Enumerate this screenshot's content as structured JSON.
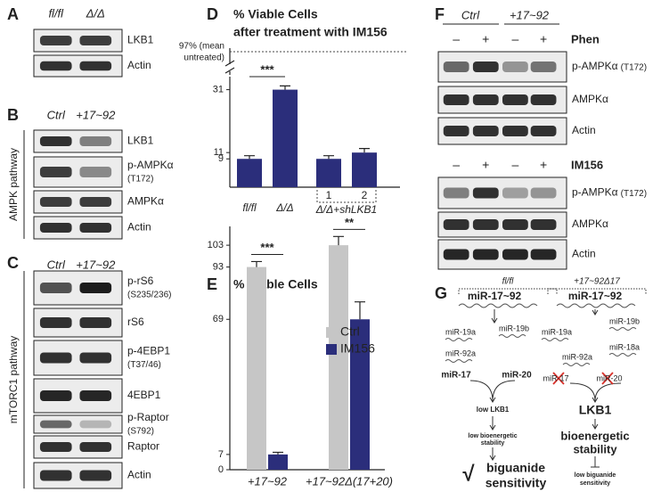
{
  "panels": {
    "A": {
      "label": "A",
      "columns": [
        "fl/fl",
        "Δ/Δ"
      ],
      "blots": [
        {
          "name": "LKB1"
        },
        {
          "name": "Actin"
        }
      ]
    },
    "B": {
      "label": "B",
      "columns": [
        "Ctrl",
        "+17~92"
      ],
      "pathway": "AMPK pathway",
      "blots": [
        {
          "name": "LKB1"
        },
        {
          "name": "p-AMPKα",
          "site": "(T172)"
        },
        {
          "name": "AMPKα"
        },
        {
          "name": "Actin"
        }
      ]
    },
    "C": {
      "label": "C",
      "columns": [
        "Ctrl",
        "+17~92"
      ],
      "pathway": "mTORC1 pathway",
      "blots": [
        {
          "name": "p-rS6",
          "site": "(S235/236)"
        },
        {
          "name": "rS6"
        },
        {
          "name": "p-4EBP1",
          "site": "(T37/46)"
        },
        {
          "name": "4EBP1"
        },
        {
          "name": "p-Raptor",
          "site": "(S792)"
        },
        {
          "name": "Raptor"
        },
        {
          "name": "Actin"
        }
      ]
    },
    "D": {
      "label": "D"
    },
    "E": {
      "label": "E"
    },
    "F": {
      "label": "F",
      "columns": [
        "Ctrl",
        "+17~92"
      ],
      "treatments": [
        {
          "name": "Phen",
          "signs": [
            "–",
            "+",
            "–",
            "+"
          ],
          "blots": [
            {
              "name": "p-AMPKα",
              "site": "(T172)"
            },
            {
              "name": "AMPKα"
            },
            {
              "name": "Actin"
            }
          ]
        },
        {
          "name": "IM156",
          "signs": [
            "–",
            "+",
            "–",
            "+"
          ],
          "blots": [
            {
              "name": "p-AMPKα",
              "site": "(T172)"
            },
            {
              "name": "AMPKα"
            },
            {
              "name": "Actin"
            }
          ]
        }
      ]
    },
    "G": {
      "label": "G",
      "left": {
        "header": "fl/fl",
        "precursor": "miR-17~92",
        "mirs": [
          "miR-19a",
          "miR-19b",
          "miR-92a",
          "miR-17",
          "miR-20"
        ],
        "lkb1": "low LKB1",
        "stability": [
          "low bioenergetic",
          "stability"
        ],
        "check": "√",
        "outcome": [
          "biguanide",
          "sensitivity"
        ]
      },
      "right": {
        "header": "+17~92Δ17",
        "precursor": "miR-17~92",
        "mirs": [
          "miR-19a",
          "miR-19b",
          "miR-18a",
          "miR-92a",
          "miR-17",
          "miR-20"
        ],
        "lkb1": "LKB1",
        "stability": [
          "bioenergetic",
          "stability"
        ],
        "outcome": [
          "low biguanide",
          "sensitivity"
        ]
      }
    }
  },
  "chart_data": [
    {
      "type": "bar",
      "title": [
        "% Viable Cells",
        "after treatment with IM156"
      ],
      "categories": [
        "fl/fl",
        "Δ/Δ",
        "1",
        "2"
      ],
      "group_label": "Δ/Δ+shLKB1",
      "values": [
        9,
        31,
        9,
        11
      ],
      "errors": [
        1,
        1.2,
        1,
        1.3
      ],
      "color": "#2b2e7b",
      "ylim": [
        0,
        34
      ],
      "yticks": [
        9,
        11,
        31
      ],
      "reference": {
        "value": 97,
        "label": [
          "97% (mean",
          "untreated)"
        ]
      },
      "annotations": [
        "***"
      ]
    },
    {
      "type": "bar",
      "title": "% Viable Cells",
      "categories": [
        "+17~92",
        "+17~92Δ(17+20)"
      ],
      "series": [
        {
          "name": "Ctrl",
          "color": "#c6c6c6",
          "values": [
            93,
            103
          ],
          "errors": [
            2.5,
            4
          ]
        },
        {
          "name": "IM156",
          "color": "#2b2e7b",
          "values": [
            7,
            69
          ],
          "errors": [
            1,
            8
          ]
        }
      ],
      "ylim": [
        0,
        110
      ],
      "yticks": [
        0,
        7,
        69,
        93,
        103
      ],
      "legend": "upper right",
      "annotations": [
        "***",
        "**"
      ]
    }
  ]
}
